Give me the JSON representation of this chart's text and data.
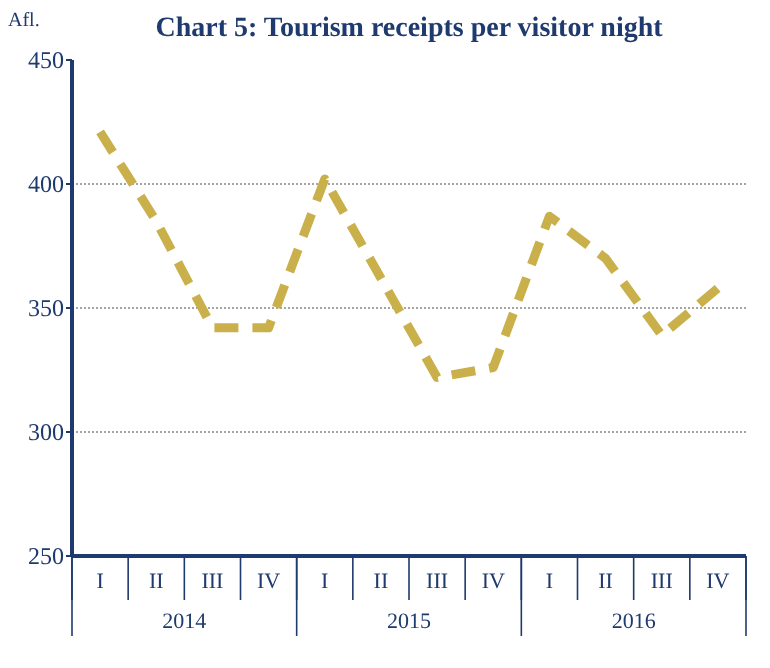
{
  "chart_data": {
    "type": "line",
    "title": "Chart 5: Tourism receipts per visitor night",
    "ylabel": "Afl.",
    "categories": [
      "I",
      "II",
      "III",
      "IV",
      "I",
      "II",
      "III",
      "IV",
      "I",
      "II",
      "III",
      "IV"
    ],
    "series": [
      {
        "color": "#c9b04a",
        "values": [
          421,
          385,
          342,
          342,
          402,
          362,
          322,
          326,
          387,
          370,
          339,
          358
        ]
      }
    ],
    "ylim": [
      250,
      450
    ],
    "yticks": [
      250,
      300,
      350,
      400,
      450
    ],
    "grid": "y",
    "line_style": "dashed",
    "annotations": [
      "2014",
      "2015",
      "2016"
    ]
  }
}
